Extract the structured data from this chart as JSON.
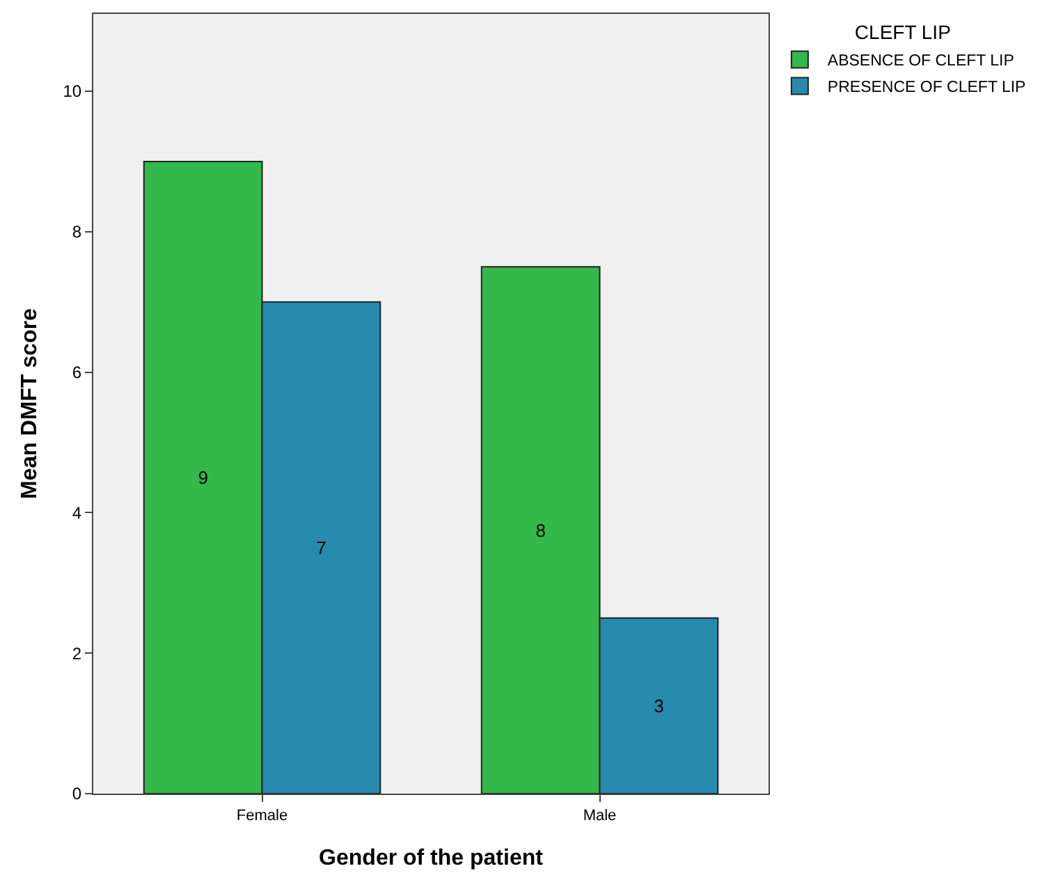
{
  "chart_data": {
    "type": "bar",
    "xlabel": "Gender of the patient",
    "ylabel": "Mean DMFT score",
    "legend_title": "CLEFT LIP",
    "categories": [
      "Female",
      "Male"
    ],
    "series": [
      {
        "name": "ABSENCE OF CLEFT LIP",
        "color": "#33b84a",
        "values": [
          9,
          7.5
        ],
        "value_labels": [
          "9",
          "8"
        ]
      },
      {
        "name": "PRESENCE OF CLEFT LIP",
        "color": "#268bad",
        "values": [
          7,
          2.5
        ],
        "value_labels": [
          "7",
          "3"
        ]
      }
    ],
    "ylim": [
      0,
      11.1
    ],
    "yticks": [
      0,
      2,
      4,
      6,
      8,
      10
    ],
    "grid": false,
    "legend": "top right"
  }
}
